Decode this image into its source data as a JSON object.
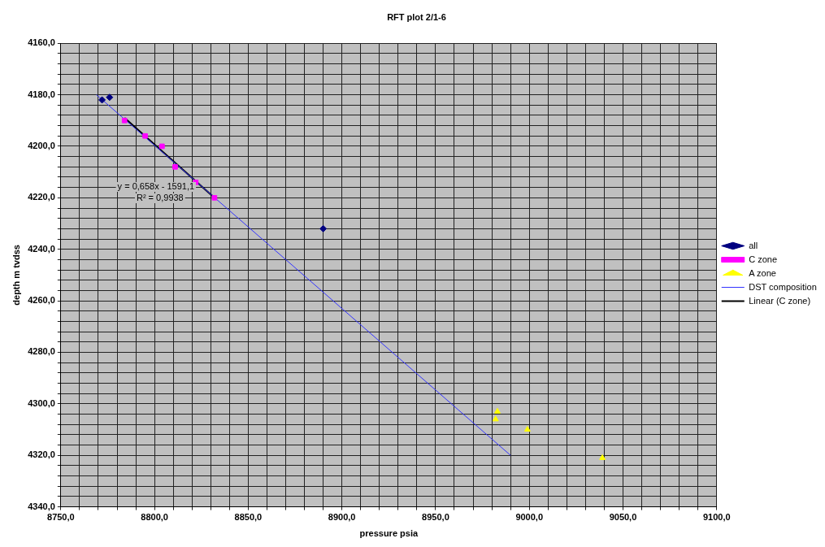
{
  "chart_data": {
    "type": "scatter",
    "title": "RFT plot 2/1-6",
    "xlabel": "pressure psia",
    "ylabel": "depth m tvdss",
    "xlim": [
      8750,
      9100
    ],
    "xticks": [
      {
        "value": 8750,
        "label": "8750,0"
      },
      {
        "value": 8760,
        "label": null
      },
      {
        "value": 8770,
        "label": null
      },
      {
        "value": 8780,
        "label": null
      },
      {
        "value": 8790,
        "label": null
      },
      {
        "value": 8800,
        "label": "8800,0"
      },
      {
        "value": 8810,
        "label": null
      },
      {
        "value": 8820,
        "label": null
      },
      {
        "value": 8830,
        "label": null
      },
      {
        "value": 8840,
        "label": null
      },
      {
        "value": 8850,
        "label": "8850,0"
      },
      {
        "value": 8860,
        "label": null
      },
      {
        "value": 8870,
        "label": null
      },
      {
        "value": 8880,
        "label": null
      },
      {
        "value": 8890,
        "label": null
      },
      {
        "value": 8900,
        "label": "8900,0"
      },
      {
        "value": 8910,
        "label": null
      },
      {
        "value": 8920,
        "label": null
      },
      {
        "value": 8930,
        "label": null
      },
      {
        "value": 8940,
        "label": null
      },
      {
        "value": 8950,
        "label": "8950,0"
      },
      {
        "value": 8960,
        "label": null
      },
      {
        "value": 8970,
        "label": null
      },
      {
        "value": 8980,
        "label": null
      },
      {
        "value": 8990,
        "label": null
      },
      {
        "value": 9000,
        "label": "9000,0"
      },
      {
        "value": 9010,
        "label": null
      },
      {
        "value": 9020,
        "label": null
      },
      {
        "value": 9030,
        "label": null
      },
      {
        "value": 9040,
        "label": null
      },
      {
        "value": 9050,
        "label": "9050,0"
      },
      {
        "value": 9060,
        "label": null
      },
      {
        "value": 9070,
        "label": null
      },
      {
        "value": 9080,
        "label": null
      },
      {
        "value": 9090,
        "label": null
      },
      {
        "value": 9100,
        "label": "9100,0"
      }
    ],
    "ylim": [
      4340,
      4160
    ],
    "yticks": [
      {
        "value": 4160,
        "label": "4160,0"
      },
      {
        "value": 4164,
        "label": null
      },
      {
        "value": 4168,
        "label": null
      },
      {
        "value": 4172,
        "label": null
      },
      {
        "value": 4176,
        "label": null
      },
      {
        "value": 4180,
        "label": "4180,0"
      },
      {
        "value": 4184,
        "label": null
      },
      {
        "value": 4188,
        "label": null
      },
      {
        "value": 4192,
        "label": null
      },
      {
        "value": 4196,
        "label": null
      },
      {
        "value": 4200,
        "label": "4200,0"
      },
      {
        "value": 4204,
        "label": null
      },
      {
        "value": 4208,
        "label": null
      },
      {
        "value": 4212,
        "label": null
      },
      {
        "value": 4216,
        "label": null
      },
      {
        "value": 4220,
        "label": "4220,0"
      },
      {
        "value": 4224,
        "label": null
      },
      {
        "value": 4228,
        "label": null
      },
      {
        "value": 4232,
        "label": null
      },
      {
        "value": 4236,
        "label": null
      },
      {
        "value": 4240,
        "label": "4240,0"
      },
      {
        "value": 4244,
        "label": null
      },
      {
        "value": 4248,
        "label": null
      },
      {
        "value": 4252,
        "label": null
      },
      {
        "value": 4256,
        "label": null
      },
      {
        "value": 4260,
        "label": "4260,0"
      },
      {
        "value": 4264,
        "label": null
      },
      {
        "value": 4268,
        "label": null
      },
      {
        "value": 4272,
        "label": null
      },
      {
        "value": 4276,
        "label": null
      },
      {
        "value": 4280,
        "label": "4280,0"
      },
      {
        "value": 4284,
        "label": null
      },
      {
        "value": 4288,
        "label": null
      },
      {
        "value": 4292,
        "label": null
      },
      {
        "value": 4296,
        "label": null
      },
      {
        "value": 4300,
        "label": "4300,0"
      },
      {
        "value": 4304,
        "label": null
      },
      {
        "value": 4308,
        "label": null
      },
      {
        "value": 4312,
        "label": null
      },
      {
        "value": 4316,
        "label": null
      },
      {
        "value": 4320,
        "label": "4320,0"
      },
      {
        "value": 4324,
        "label": null
      },
      {
        "value": 4328,
        "label": null
      },
      {
        "value": 4332,
        "label": null
      },
      {
        "value": 4336,
        "label": null
      },
      {
        "value": 4340,
        "label": "4340,0"
      }
    ],
    "grid": true,
    "legend": "right",
    "series": [
      {
        "name": "all",
        "marker": "diamond",
        "color": "#000080",
        "x": [
          8772,
          8776,
          8890
        ],
        "values": [
          4182,
          4181,
          4232
        ]
      },
      {
        "name": "C zone",
        "marker": "square",
        "color": "#ff00ff",
        "x": [
          8784,
          8795,
          8804,
          8811,
          8822,
          8832
        ],
        "values": [
          4190,
          4196,
          4200,
          4208,
          4214,
          4220
        ]
      },
      {
        "name": "A zone",
        "marker": "triangle",
        "color": "#ffff00",
        "x": [
          8983,
          8982,
          8999,
          9039
        ],
        "values": [
          4303,
          4306,
          4310,
          4321
        ]
      },
      {
        "name": "DST composition",
        "type": "line",
        "marker": "none",
        "color": "#3333ff",
        "x": [
          8769,
          8990
        ],
        "values": [
          4180,
          4320
        ]
      },
      {
        "name": "Linear (C zone)",
        "type": "line",
        "marker": "none",
        "color": "#000000",
        "x": [
          8784,
          8832
        ],
        "values": [
          4189,
          4220
        ]
      }
    ],
    "annotations": [
      "y = 0,658x - 1591,1",
      "R² = 0,9938"
    ]
  }
}
